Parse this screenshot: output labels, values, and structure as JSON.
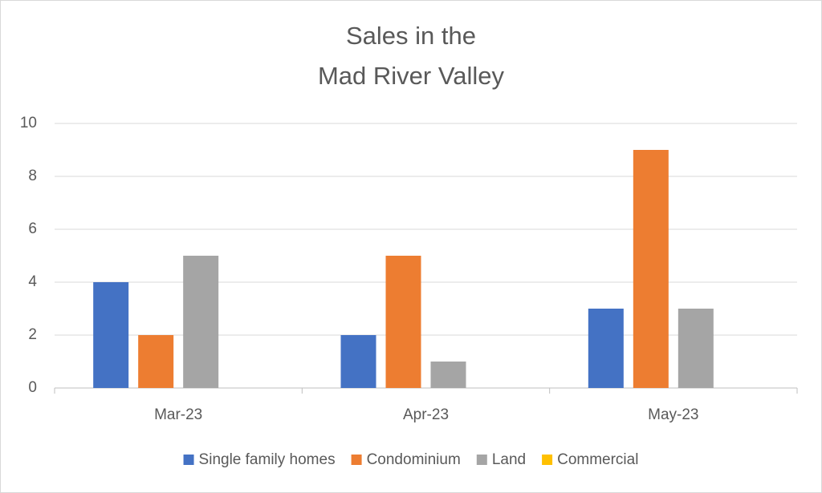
{
  "chart_data": {
    "type": "bar",
    "title": [
      "Sales in the",
      "Mad River Valley"
    ],
    "categories": [
      "Mar-23",
      "Apr-23",
      "May-23"
    ],
    "series": [
      {
        "name": "Single family homes",
        "color": "#4472c4",
        "values": [
          4,
          2,
          3
        ]
      },
      {
        "name": "Condominium",
        "color": "#ed7d31",
        "values": [
          2,
          5,
          9
        ]
      },
      {
        "name": "Land",
        "color": "#a5a5a5",
        "values": [
          5,
          1,
          3
        ]
      },
      {
        "name": "Commercial",
        "color": "#ffc000",
        "values": [
          0,
          0,
          0
        ]
      }
    ],
    "ylim": [
      0,
      10
    ],
    "yticks": [
      0,
      2,
      4,
      6,
      8,
      10
    ],
    "grid": true,
    "legend": "bottom"
  }
}
